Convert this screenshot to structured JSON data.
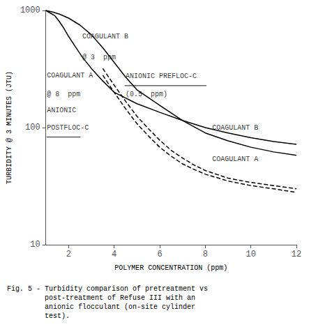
{
  "chart_data": {
    "type": "line",
    "title": "",
    "xlabel": "POLYMER CONCENTRATION (ppm)",
    "ylabel": "TURBIDITY @ 3 MINUTES (JTU)",
    "xlim": [
      1,
      12
    ],
    "ylim": [
      10,
      1000
    ],
    "xticks": [
      2,
      4,
      6,
      8,
      10,
      12
    ],
    "yticks": [
      10,
      100,
      1000
    ],
    "log": "y",
    "grid": false,
    "series": [
      {
        "color": "#000000",
        "line_style": "solid",
        "x": [
          1.0,
          1.2,
          1.4,
          1.6,
          1.8,
          2.0,
          2.3,
          2.6,
          3.0,
          3.5,
          4.0,
          5.0,
          6.0,
          7.0,
          8.0,
          9.0,
          10.0,
          11.0,
          12.0
        ],
        "values": [
          1000,
          950,
          900,
          800,
          700,
          600,
          490,
          400,
          320,
          250,
          200,
          160,
          135,
          115,
          100,
          90,
          82,
          76,
          72
        ]
      },
      {
        "color": "#000000",
        "line_style": "solid",
        "x": [
          1.0,
          1.3,
          1.6,
          2.0,
          2.5,
          3.0,
          3.5,
          4.0,
          4.5,
          5.0,
          6.0,
          7.0,
          8.0,
          9.0,
          10.0,
          11.0,
          12.0
        ],
        "values": [
          1000,
          970,
          930,
          860,
          750,
          620,
          480,
          360,
          270,
          210,
          155,
          115,
          90,
          77,
          68,
          62,
          58
        ]
      },
      {
        "color": "#000000",
        "line_style": "dashed",
        "x": [
          3.5,
          4.0,
          4.5,
          5.0,
          5.5,
          6.0,
          6.5,
          7.0,
          7.5,
          8.0,
          9.0,
          10.0,
          11.0,
          12.0
        ],
        "values": [
          280,
          200,
          145,
          108,
          85,
          68,
          57,
          49,
          44,
          40,
          35,
          32,
          30,
          28
        ]
      },
      {
        "color": "#000000",
        "line_style": "dashed",
        "x": [
          3.5,
          4.0,
          4.5,
          5.0,
          5.5,
          6.0,
          6.5,
          7.0,
          7.5,
          8.0,
          9.0,
          10.0,
          11.0,
          12.0
        ],
        "values": [
          320,
          230,
          168,
          125,
          98,
          78,
          64,
          55,
          48,
          43,
          37,
          34,
          32,
          30
        ]
      }
    ],
    "annotations": [
      {
        "text": "COAGULANT B",
        "x": 2.6,
        "y": 560
      },
      {
        "text": "@ 3  ppm",
        "x": 2.6,
        "y": 370
      },
      {
        "text": "COAGULANT A",
        "x": 1.05,
        "y": 260
      },
      {
        "text": "@ 8  ppm",
        "x": 1.05,
        "y": 180
      },
      {
        "text": "ANIONIC",
        "x": 1.05,
        "y": 130
      },
      {
        "text": "POSTFLOC-C",
        "x": 1.05,
        "y": 93
      },
      {
        "text": "ANIONIC PREFLOC-C",
        "x": 4.5,
        "y": 255
      },
      {
        "text": "(0.5  ppm)",
        "x": 4.5,
        "y": 178
      },
      {
        "text": "COAGULANT B",
        "x": 8.3,
        "y": 93
      },
      {
        "text": "COAGULANT A",
        "x": 8.3,
        "y": 50
      }
    ],
    "annotation_lines": [
      {
        "x": [
          1.04,
          2.52
        ],
        "y": [
          83,
          83
        ]
      },
      {
        "x": [
          4.46,
          8.05
        ],
        "y": [
          228,
          228
        ]
      }
    ],
    "caption": [
      "Fig. 5 - Turbidity comparison of pretreatment vs",
      "         post-treatment of Refuse III with an",
      "         anionic flocculant (on-site cylinder",
      "         test)."
    ]
  }
}
